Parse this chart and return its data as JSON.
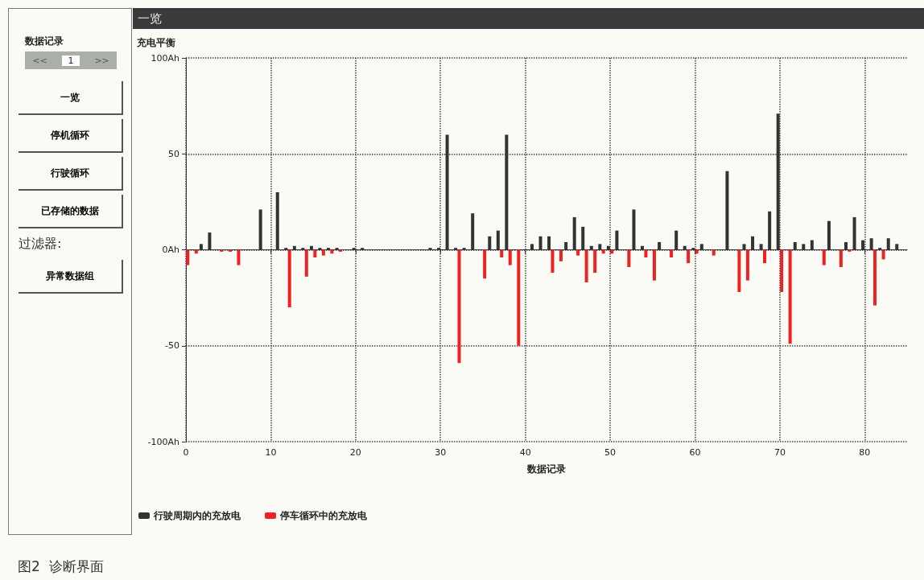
{
  "chart_data": {
    "type": "bar",
    "title": "充电平衡",
    "subtitle": "一览",
    "xlabel": "数据记录",
    "annotations": [
      "图2  诊断界面",
      "数据记录",
      "<<",
      "1",
      ">>",
      "一览",
      "停机循环",
      "行驶循环",
      "已存储的数据",
      "过滤器:",
      "异常数据组"
    ],
    "series": [
      {
        "name": "行驶周期内的充放电",
        "color": "#333333",
        "x": [
          2,
          3,
          9,
          11,
          12,
          13,
          14,
          15,
          16,
          17,
          18,
          20,
          21,
          29,
          30,
          31,
          32,
          33,
          34,
          36,
          37,
          38,
          41,
          42,
          43,
          45,
          46,
          47,
          48,
          49,
          50,
          51,
          53,
          54,
          56,
          58,
          59,
          60,
          61,
          64,
          66,
          67,
          68,
          69,
          70,
          72,
          73,
          74,
          76,
          78,
          79,
          80,
          81,
          82,
          83,
          84
        ],
        "values": [
          3,
          9,
          21,
          30,
          1,
          2,
          1,
          2,
          1,
          1,
          1,
          1,
          1,
          1,
          1,
          60,
          1,
          1,
          19,
          7,
          10,
          60,
          3,
          7,
          7,
          4,
          17,
          12,
          2,
          3,
          2,
          10,
          21,
          2,
          4,
          10,
          2,
          1,
          3,
          41,
          3,
          7,
          3,
          20,
          71,
          4,
          3,
          5,
          15,
          4,
          17,
          5,
          6,
          1,
          6,
          3
        ]
      },
      {
        "name": "停车循环中的充放电",
        "color": "#ee2222",
        "x": [
          0,
          1,
          4,
          5,
          6,
          12,
          14,
          15,
          16,
          17,
          18,
          32,
          35,
          37,
          38,
          39,
          43,
          44,
          46,
          47,
          48,
          49,
          50,
          52,
          54,
          55,
          57,
          59,
          60,
          62,
          65,
          66,
          68,
          70,
          71,
          75,
          77,
          78,
          81,
          82
        ],
        "values": [
          -8,
          -2,
          -1,
          -1,
          -8,
          -30,
          -14,
          -4,
          -3,
          -2,
          -1,
          -59,
          -15,
          -4,
          -8,
          -50,
          -12,
          -6,
          -3,
          -17,
          -12,
          -2,
          -2,
          -9,
          -4,
          -16,
          -4,
          -7,
          -2,
          -3,
          -22,
          -16,
          -7,
          -22,
          -49,
          -8,
          -9,
          -1,
          -29,
          -5
        ]
      }
    ],
    "xlim": [
      0,
      85
    ],
    "xticks": [
      0,
      10,
      20,
      30,
      40,
      50,
      60,
      70,
      80
    ],
    "ylim": [
      -100,
      100
    ],
    "yticks": [
      {
        "value": -100,
        "label": "-100Ah"
      },
      {
        "value": -50,
        "label": "-50"
      },
      {
        "value": 0,
        "label": "0Ah"
      },
      {
        "value": 50,
        "label": "50"
      },
      {
        "value": 100,
        "label": "100Ah"
      }
    ],
    "grid": true,
    "legend": "bottom left"
  }
}
